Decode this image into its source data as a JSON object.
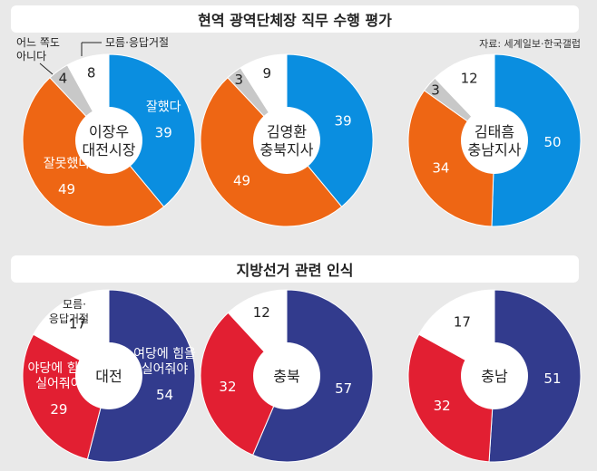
{
  "top_title": "현역 광역단체장 직무 수행 평가",
  "source": "자료: 세계일보·한국갤럽",
  "bottom_title": "지방선거 관련 인식",
  "colors": {
    "blue": "#0a8ee0",
    "orange": "#ee6614",
    "gray": "#c8c8c8",
    "white": "#ffffff",
    "navy": "#323b8d",
    "red": "#e21f32"
  },
  "chart_data": [
    {
      "type": "pie",
      "title": "이장우 대전시장",
      "center_label": [
        "이장우",
        "대전시장"
      ],
      "slices": [
        {
          "label": "잘했다",
          "value": 39,
          "color": "#0a8ee0",
          "text_color": "#ffffff"
        },
        {
          "label": "잘못했다",
          "value": 49,
          "color": "#ee6614",
          "text_color": "#ffffff"
        },
        {
          "label": "어느 쪽도 아니다",
          "value": 4,
          "color": "#c8c8c8",
          "text_color": "#222222"
        },
        {
          "label": "모름·응답거절",
          "value": 8,
          "color": "#ffffff",
          "text_color": "#222222"
        }
      ]
    },
    {
      "type": "pie",
      "title": "김영환 충북지사",
      "center_label": [
        "김영환",
        "충북지사"
      ],
      "slices": [
        {
          "label": "",
          "value": 39,
          "color": "#0a8ee0",
          "text_color": "#ffffff"
        },
        {
          "label": "",
          "value": 49,
          "color": "#ee6614",
          "text_color": "#ffffff"
        },
        {
          "label": "",
          "value": 3,
          "color": "#c8c8c8",
          "text_color": "#222222"
        },
        {
          "label": "",
          "value": 9,
          "color": "#ffffff",
          "text_color": "#222222"
        }
      ]
    },
    {
      "type": "pie",
      "title": "김태흠 충남지사",
      "center_label": [
        "김태흠",
        "충남지사"
      ],
      "slices": [
        {
          "label": "",
          "value": 50,
          "color": "#0a8ee0",
          "text_color": "#ffffff"
        },
        {
          "label": "",
          "value": 34,
          "color": "#ee6614",
          "text_color": "#ffffff"
        },
        {
          "label": "",
          "value": 3,
          "color": "#c8c8c8",
          "text_color": "#222222"
        },
        {
          "label": "",
          "value": 12,
          "color": "#ffffff",
          "text_color": "#222222"
        }
      ]
    },
    {
      "type": "pie",
      "title": "대전",
      "center_label": [
        "대전"
      ],
      "slices": [
        {
          "label": "여당에 힘을 실어줘야",
          "value": 54,
          "color": "#323b8d",
          "text_color": "#ffffff"
        },
        {
          "label": "야당에 힘을 실어줘야",
          "value": 29,
          "color": "#e21f32",
          "text_color": "#ffffff"
        },
        {
          "label": "모름·응답거절",
          "value": 17,
          "color": "#ffffff",
          "text_color": "#222222"
        }
      ]
    },
    {
      "type": "pie",
      "title": "충북",
      "center_label": [
        "충북"
      ],
      "slices": [
        {
          "label": "",
          "value": 57,
          "color": "#323b8d",
          "text_color": "#ffffff"
        },
        {
          "label": "",
          "value": 32,
          "color": "#e21f32",
          "text_color": "#ffffff"
        },
        {
          "label": "",
          "value": 12,
          "color": "#ffffff",
          "text_color": "#222222"
        }
      ]
    },
    {
      "type": "pie",
      "title": "충남",
      "center_label": [
        "충남"
      ],
      "slices": [
        {
          "label": "",
          "value": 51,
          "color": "#323b8d",
          "text_color": "#ffffff"
        },
        {
          "label": "",
          "value": 32,
          "color": "#e21f32",
          "text_color": "#ffffff"
        },
        {
          "label": "",
          "value": 17,
          "color": "#ffffff",
          "text_color": "#222222"
        }
      ]
    }
  ]
}
